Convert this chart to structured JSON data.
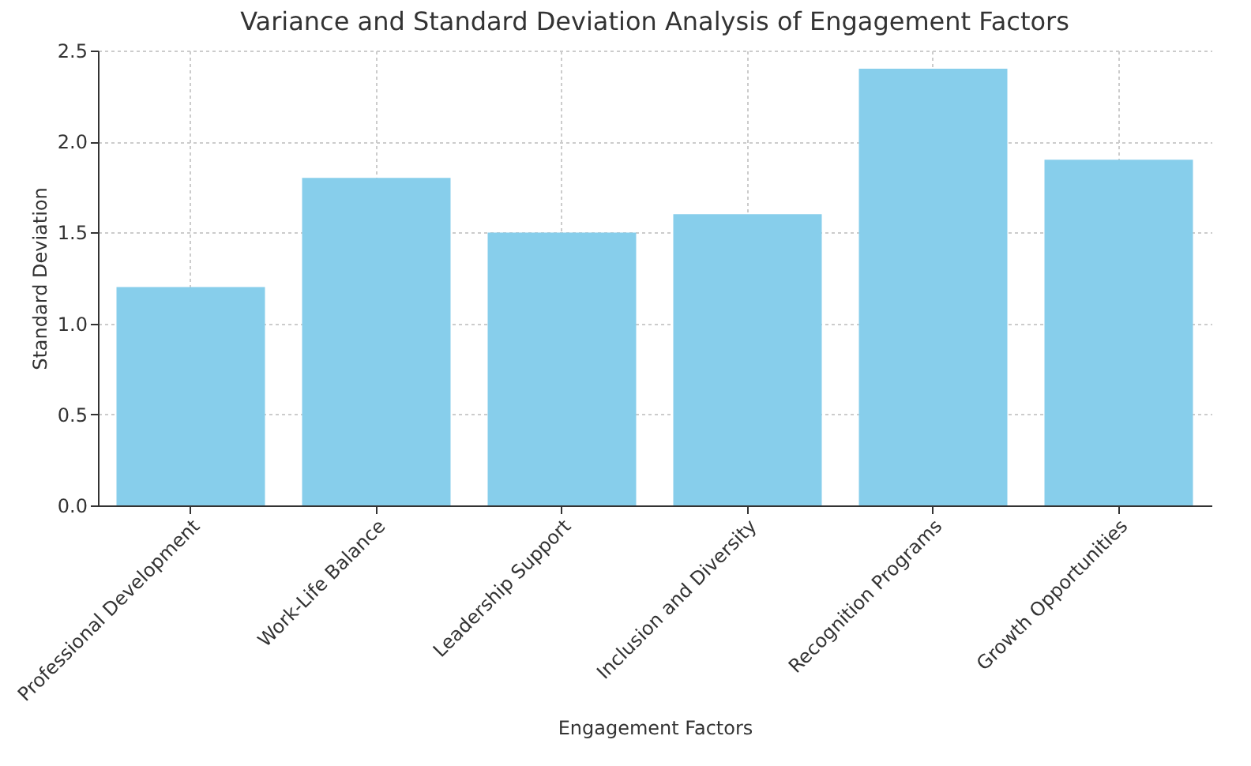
{
  "chart_data": {
    "type": "bar",
    "title": "Variance and Standard Deviation Analysis of Engagement Factors",
    "xlabel": "Engagement Factors",
    "ylabel": "Standard Deviation",
    "categories": [
      "Professional Development",
      "Work-Life Balance",
      "Leadership Support",
      "Inclusion and Diversity",
      "Recognition Programs",
      "Growth Opportunities"
    ],
    "values": [
      1.2,
      1.8,
      1.5,
      1.6,
      2.4,
      1.9
    ],
    "color": "#87ceeb",
    "ylim": [
      0,
      2.5
    ],
    "yticks": [
      {
        "value": 0,
        "label": "0.0"
      },
      {
        "value": 0.5,
        "label": "0.5"
      },
      {
        "value": 1,
        "label": "1.0"
      },
      {
        "value": 1.5,
        "label": "1.5"
      },
      {
        "value": 2,
        "label": "2.0"
      },
      {
        "value": 2.5,
        "label": "2.5"
      }
    ],
    "grid": true
  }
}
